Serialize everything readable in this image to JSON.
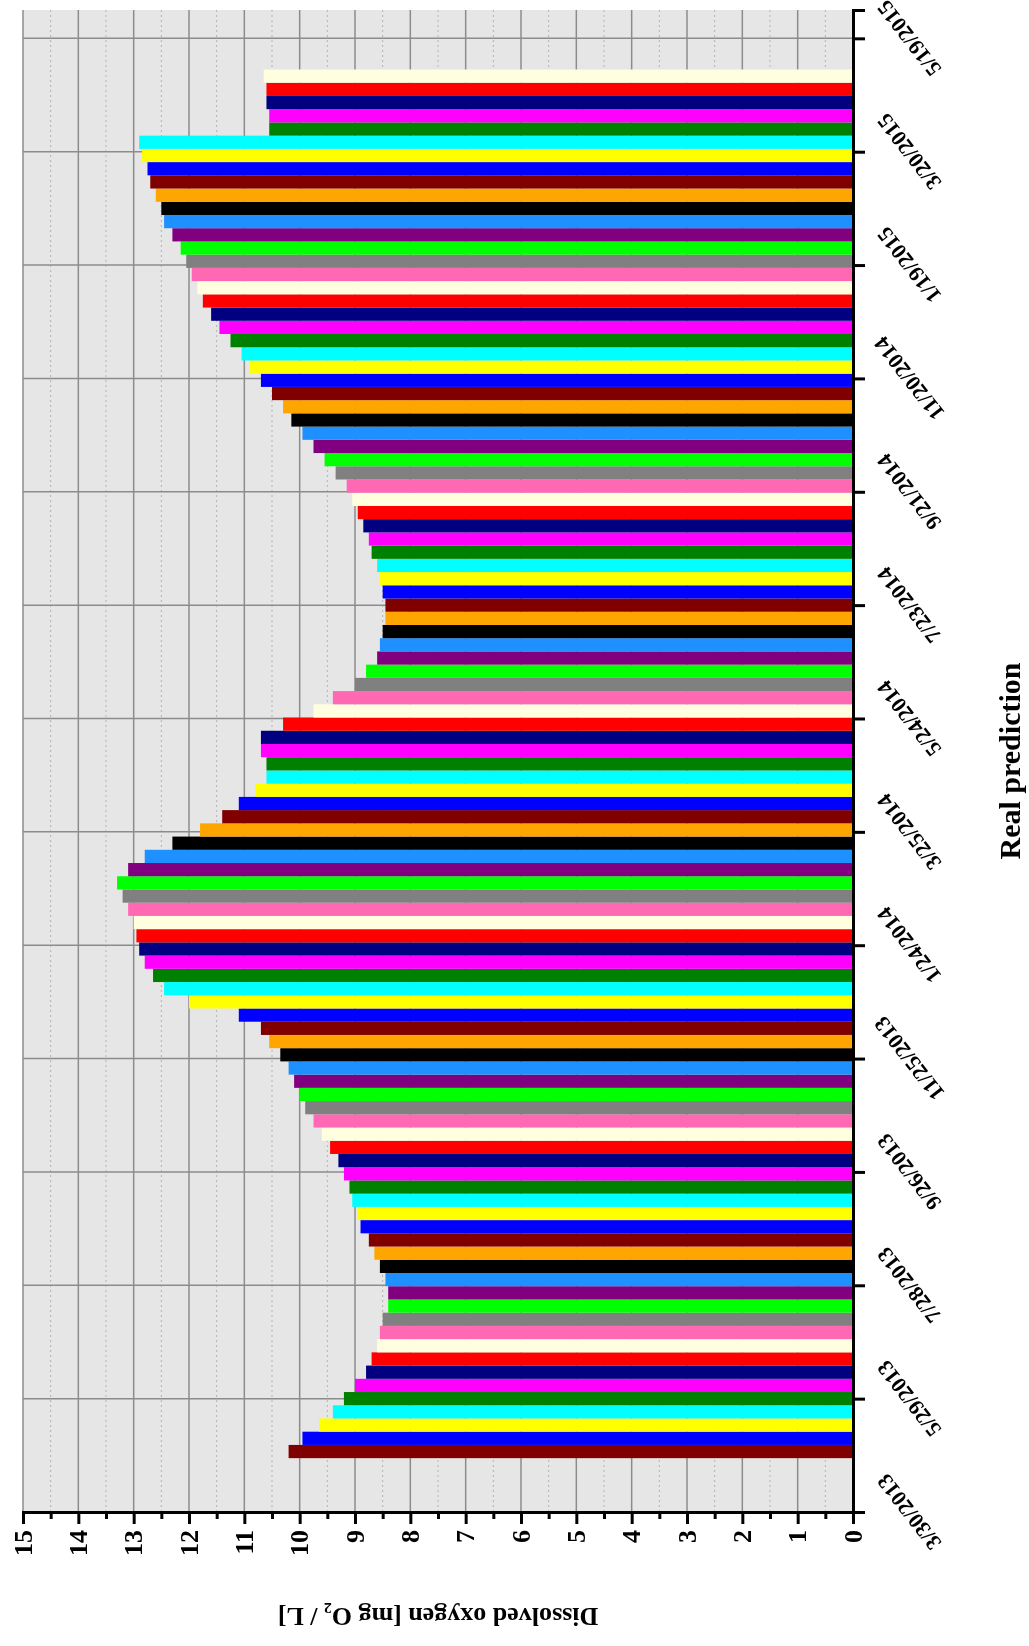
{
  "chart_data": {
    "type": "bar",
    "orientation": "horizontal",
    "ylabel": "Real prediction",
    "xlabel": "Dissolved oxygen [mg O₂ / L]",
    "grid": true,
    "ylim": [
      "2013-03-30",
      "2015-06-03"
    ],
    "yticks": [
      {
        "value": "2013-03-30",
        "label": "3/30/2013"
      },
      {
        "value": "2013-05-29",
        "label": "5/29/2013"
      },
      {
        "value": "2013-07-28",
        "label": "7/28/2013"
      },
      {
        "value": "2013-09-26",
        "label": "9/26/2013"
      },
      {
        "value": "2013-11-25",
        "label": "11/25/2013"
      },
      {
        "value": "2014-01-24",
        "label": "1/24/2014"
      },
      {
        "value": "2014-03-25",
        "label": "3/25/2014"
      },
      {
        "value": "2014-05-24",
        "label": "5/24/2014"
      },
      {
        "value": "2014-07-23",
        "label": "7/23/2014"
      },
      {
        "value": "2014-09-21",
        "label": "9/21/2014"
      },
      {
        "value": "2014-11-20",
        "label": "11/20/2014"
      },
      {
        "value": "2015-01-19",
        "label": "1/19/2015"
      },
      {
        "value": "2015-03-20",
        "label": "3/20/2015"
      },
      {
        "value": "2015-05-19",
        "label": "5/19/2015"
      }
    ],
    "xlim": [
      15,
      0
    ],
    "xticks": [
      0,
      {
        "value": 0.5,
        "label": null
      },
      1,
      {
        "value": 1.5,
        "label": null
      },
      2,
      {
        "value": 2.5,
        "label": null
      },
      3,
      {
        "value": 3.5,
        "label": null
      },
      4,
      {
        "value": 4.5,
        "label": null
      },
      5,
      {
        "value": 5.5,
        "label": null
      },
      6,
      {
        "value": 6.5,
        "label": null
      },
      7,
      {
        "value": 7.5,
        "label": null
      },
      8,
      {
        "value": 8.5,
        "label": null
      },
      9,
      {
        "value": 9.5,
        "label": null
      },
      10,
      {
        "value": 10.5,
        "label": null
      },
      11,
      {
        "value": 11.5,
        "label": null
      },
      12,
      {
        "value": 12.5,
        "label": null
      },
      13,
      {
        "value": 13.5,
        "label": null
      },
      14,
      {
        "value": 14.5,
        "label": null
      },
      15
    ],
    "x": [
      "2013-05-01",
      "2013-05-08",
      "2013-05-15",
      "2013-05-22",
      "2013-05-29",
      "2013-06-05",
      "2013-06-12",
      "2013-06-19",
      "2013-06-26",
      "2013-07-03",
      "2013-07-10",
      "2013-07-17",
      "2013-07-24",
      "2013-07-31",
      "2013-08-07",
      "2013-08-14",
      "2013-08-21",
      "2013-08-28",
      "2013-09-04",
      "2013-09-11",
      "2013-09-18",
      "2013-09-25",
      "2013-10-02",
      "2013-10-09",
      "2013-10-16",
      "2013-10-23",
      "2013-10-30",
      "2013-11-06",
      "2013-11-13",
      "2013-11-20",
      "2013-11-27",
      "2013-12-04",
      "2013-12-11",
      "2013-12-18",
      "2013-12-25",
      "2014-01-01",
      "2014-01-08",
      "2014-01-15",
      "2014-01-22",
      "2014-01-29",
      "2014-02-05",
      "2014-02-12",
      "2014-02-19",
      "2014-02-26",
      "2014-03-05",
      "2014-03-12",
      "2014-03-19",
      "2014-03-26",
      "2014-04-02",
      "2014-04-09",
      "2014-04-16",
      "2014-04-23",
      "2014-04-30",
      "2014-05-07",
      "2014-05-14",
      "2014-05-21",
      "2014-05-28",
      "2014-06-04",
      "2014-06-11",
      "2014-06-18",
      "2014-06-25",
      "2014-07-02",
      "2014-07-09",
      "2014-07-16",
      "2014-07-23",
      "2014-07-30",
      "2014-08-06",
      "2014-08-13",
      "2014-08-20",
      "2014-08-27",
      "2014-09-03",
      "2014-09-10",
      "2014-09-17",
      "2014-09-24",
      "2014-10-01",
      "2014-10-08",
      "2014-10-15",
      "2014-10-22",
      "2014-10-29",
      "2014-11-05",
      "2014-11-12",
      "2014-11-19",
      "2014-11-26",
      "2014-12-03",
      "2014-12-10",
      "2014-12-17",
      "2014-12-24",
      "2014-12-31",
      "2015-01-07",
      "2015-01-14",
      "2015-01-21",
      "2015-01-28",
      "2015-02-04",
      "2015-02-11",
      "2015-02-18",
      "2015-02-25",
      "2015-03-04",
      "2015-03-11",
      "2015-03-18",
      "2015-03-25",
      "2015-04-01",
      "2015-04-08",
      "2015-04-15",
      "2015-04-22",
      "2015-04-29"
    ],
    "values": [
      10.2,
      9.95,
      9.65,
      9.4,
      9.2,
      9.0,
      8.8,
      8.7,
      8.6,
      8.55,
      8.5,
      8.4,
      8.4,
      8.45,
      8.55,
      8.65,
      8.75,
      8.9,
      8.95,
      9.05,
      9.1,
      9.2,
      9.3,
      9.45,
      9.6,
      9.75,
      9.9,
      10.0,
      10.1,
      10.2,
      10.35,
      10.55,
      10.7,
      11.1,
      12.0,
      12.45,
      12.65,
      12.8,
      12.9,
      12.95,
      13.0,
      13.1,
      13.2,
      13.3,
      13.1,
      12.8,
      12.3,
      11.8,
      11.4,
      11.1,
      10.8,
      10.6,
      10.6,
      10.7,
      10.7,
      10.3,
      9.75,
      9.4,
      9.0,
      8.8,
      8.6,
      8.55,
      8.5,
      8.45,
      8.45,
      8.5,
      8.55,
      8.6,
      8.7,
      8.75,
      8.85,
      8.95,
      9.05,
      9.15,
      9.35,
      9.55,
      9.75,
      9.95,
      10.15,
      10.3,
      10.5,
      10.7,
      10.9,
      11.05,
      11.25,
      11.45,
      11.6,
      11.75,
      11.85,
      11.95,
      12.05,
      12.15,
      12.3,
      12.45,
      12.5,
      12.6,
      12.7,
      12.75,
      12.85,
      12.9,
      10.55,
      10.55,
      10.6,
      10.6,
      10.65
    ],
    "colors": [
      "#800000",
      "#0000ff",
      "#ffff00",
      "#00ffff",
      "#008000",
      "#ff00ff",
      "#000080",
      "#ff0000",
      "#ffffe0",
      "#ff69b4",
      "#808080",
      "#00ff00",
      "#800080",
      "#1e90ff",
      "#000000",
      "#ffa500",
      "#800000",
      "#0000ff",
      "#ffff00",
      "#00ffff",
      "#008000",
      "#ff00ff",
      "#000080",
      "#ff0000",
      "#ffffe0",
      "#ff69b4",
      "#808080",
      "#00ff00",
      "#800080",
      "#1e90ff",
      "#000000",
      "#ffa500",
      "#800000",
      "#0000ff",
      "#ffff00",
      "#00ffff",
      "#008000",
      "#ff00ff",
      "#000080",
      "#ff0000",
      "#ffffe0",
      "#ff69b4",
      "#808080",
      "#00ff00",
      "#800080",
      "#1e90ff",
      "#000000",
      "#ffa500",
      "#800000",
      "#0000ff",
      "#ffff00",
      "#00ffff",
      "#008000",
      "#ff00ff",
      "#000080",
      "#ff0000",
      "#ffffe0",
      "#ff69b4",
      "#808080",
      "#00ff00",
      "#800080",
      "#1e90ff",
      "#000000",
      "#ffa500",
      "#800000",
      "#0000ff",
      "#ffff00",
      "#00ffff",
      "#008000",
      "#ff00ff",
      "#000080",
      "#ff0000",
      "#ffffe0",
      "#ff69b4",
      "#808080",
      "#00ff00",
      "#800080",
      "#1e90ff",
      "#000000",
      "#ffa500",
      "#800000",
      "#0000ff",
      "#ffff00",
      "#00ffff",
      "#008000",
      "#ff00ff",
      "#000080",
      "#ff0000",
      "#ffffe0",
      "#ff69b4",
      "#808080",
      "#00ff00",
      "#800080",
      "#1e90ff",
      "#000000",
      "#ffa500",
      "#800000",
      "#0000ff",
      "#ffff00",
      "#00ffff",
      "#008000",
      "#ff00ff",
      "#000080",
      "#ff0000",
      "#ffffe0"
    ]
  }
}
